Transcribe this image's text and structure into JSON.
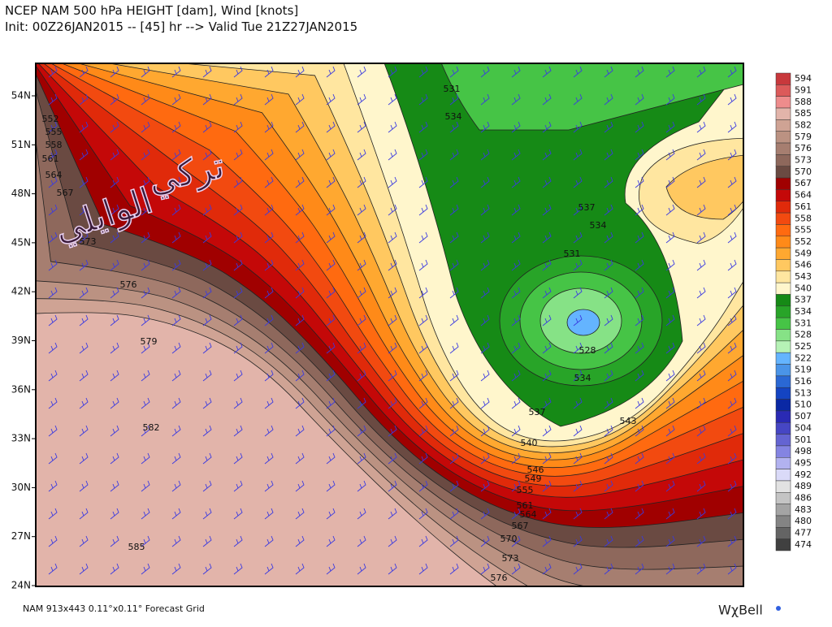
{
  "header": {
    "line1": "NCEP NAM 500 hPa HEIGHT [dam], Wind [knots]",
    "line2": "Init: 00Z26JAN2015 -- [45] hr --> Valid Tue 21Z27JAN2015"
  },
  "watermark": {
    "line1": "تركي",
    "line2": "الوايلي"
  },
  "latitude_labels": [
    "54N",
    "51N",
    "48N",
    "45N",
    "42N",
    "39N",
    "36N",
    "33N",
    "30N",
    "27N",
    "24N"
  ],
  "colorbar": [
    {
      "level": 594,
      "color": "#c8383c"
    },
    {
      "level": 591,
      "color": "#dc5a5a"
    },
    {
      "level": 588,
      "color": "#ee8c8c"
    },
    {
      "level": 585,
      "color": "#e2b4aa"
    },
    {
      "level": 582,
      "color": "#cfa394"
    },
    {
      "level": 579,
      "color": "#bb9282"
    },
    {
      "level": 576,
      "color": "#a67e70"
    },
    {
      "level": 573,
      "color": "#8e685c"
    },
    {
      "level": 570,
      "color": "#6a4a42"
    },
    {
      "level": 567,
      "color": "#a00000"
    },
    {
      "level": 564,
      "color": "#c40808"
    },
    {
      "level": 561,
      "color": "#e02a0a"
    },
    {
      "level": 558,
      "color": "#f24a10"
    },
    {
      "level": 555,
      "color": "#ff6a10"
    },
    {
      "level": 552,
      "color": "#ff8a18"
    },
    {
      "level": 549,
      "color": "#ffa830"
    },
    {
      "level": 546,
      "color": "#ffc860"
    },
    {
      "level": 543,
      "color": "#ffe6a0"
    },
    {
      "level": 540,
      "color": "#fff6cc"
    },
    {
      "level": 537,
      "color": "#168a16"
    },
    {
      "level": 534,
      "color": "#28a428"
    },
    {
      "level": 531,
      "color": "#46c446"
    },
    {
      "level": 528,
      "color": "#86e286"
    },
    {
      "level": 525,
      "color": "#b6f2b6"
    },
    {
      "level": 522,
      "color": "#64b4ff"
    },
    {
      "level": 519,
      "color": "#4a94e8"
    },
    {
      "level": 516,
      "color": "#2a68d4"
    },
    {
      "level": 513,
      "color": "#1444c2"
    },
    {
      "level": 510,
      "color": "#0a28a4"
    },
    {
      "level": 507,
      "color": "#2a2ab4"
    },
    {
      "level": 504,
      "color": "#4646c4"
    },
    {
      "level": 501,
      "color": "#6464d2"
    },
    {
      "level": 498,
      "color": "#8484e2"
    },
    {
      "level": 495,
      "color": "#b2b2f0"
    },
    {
      "level": 492,
      "color": "#dadaf8"
    },
    {
      "level": 489,
      "color": "#e2e2e2"
    },
    {
      "level": 486,
      "color": "#c4c4c4"
    },
    {
      "level": 483,
      "color": "#a4a4a4"
    },
    {
      "level": 480,
      "color": "#848484"
    },
    {
      "level": 477,
      "color": "#646464"
    },
    {
      "level": 474,
      "color": "#404040"
    }
  ],
  "contour_labels": [
    "552",
    "555",
    "558",
    "561",
    "564",
    "567",
    "573",
    "576",
    "579",
    "582",
    "585",
    "531",
    "534",
    "537",
    "534",
    "531",
    "528",
    "534",
    "537",
    "543",
    "540",
    "546",
    "549",
    "555",
    "561",
    "564",
    "567",
    "570",
    "573",
    "576"
  ],
  "footer": {
    "grid": "NAM 913x443 0.11°x0.11° Forecast Grid",
    "logo": "WχBell"
  }
}
